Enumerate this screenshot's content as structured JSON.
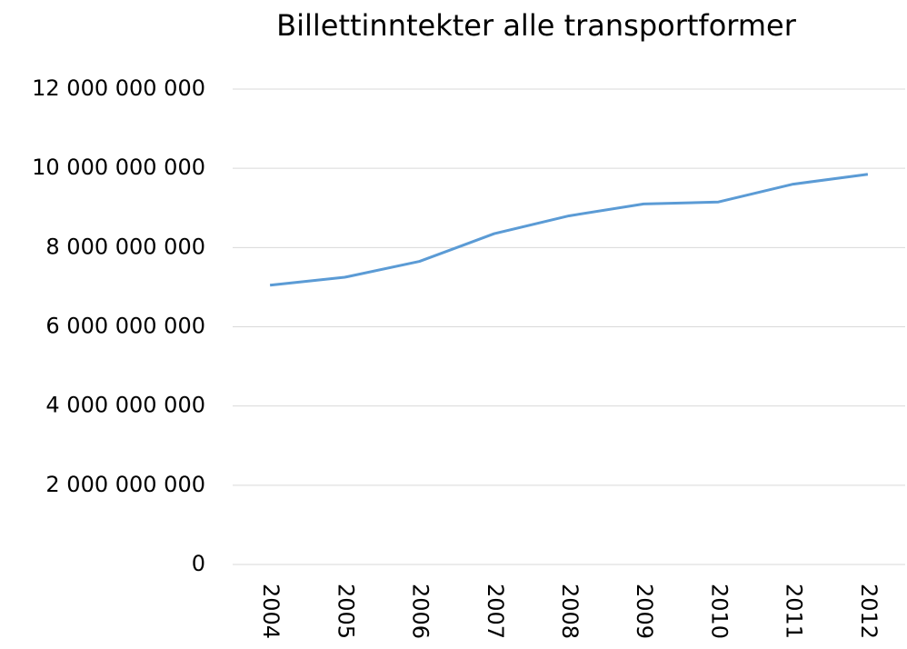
{
  "chart_data": {
    "type": "line",
    "title": "Billettinntekter alle transportformer",
    "categories": [
      "2004",
      "2005",
      "2006",
      "2007",
      "2008",
      "2009",
      "2010",
      "2011",
      "2012"
    ],
    "series": [
      {
        "name": "Billettinntekter",
        "color": "#5b9bd5",
        "values": [
          7050000000,
          7250000000,
          7650000000,
          8350000000,
          8800000000,
          9100000000,
          9150000000,
          9600000000,
          9850000000
        ]
      }
    ],
    "ylim": [
      0,
      12000000000
    ],
    "yticks": [
      0,
      {
        "value": 2000000000,
        "label": "2 000 000 000"
      },
      {
        "value": 4000000000,
        "label": "4 000 000 000"
      },
      {
        "value": 6000000000,
        "label": "6 000 000 000"
      },
      {
        "value": 8000000000,
        "label": "8 000 000 000"
      },
      {
        "value": 10000000000,
        "label": "10 000 000 000"
      },
      {
        "value": 12000000000,
        "label": "12 000 000 000"
      }
    ],
    "grid": true
  }
}
